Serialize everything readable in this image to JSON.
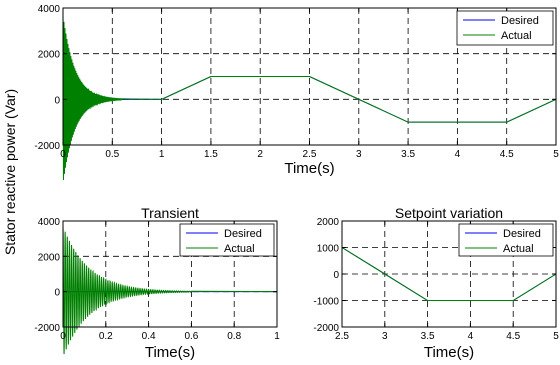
{
  "figure": {
    "shared_ylabel": "Stator reactive power (Var)"
  },
  "chart_data": [
    {
      "type": "line",
      "title": "",
      "xlabel": "Time(s)",
      "ylabel": "",
      "xlim": [
        0,
        5
      ],
      "ylim": [
        -2000,
        4000
      ],
      "xticks": [
        0,
        0.5,
        1,
        1.5,
        2,
        2.5,
        3,
        3.5,
        4,
        4.5,
        5
      ],
      "xtick_labels": [
        "0",
        "0.5",
        "1",
        "1.5",
        "2",
        "2.5",
        "3",
        "3.5",
        "4",
        "4.5",
        "5"
      ],
      "yticks": [
        -2000,
        0,
        2000,
        4000
      ],
      "ytick_labels": [
        "-2000",
        "0",
        "2000",
        "4000"
      ],
      "grid": true,
      "legend_position": "top-right",
      "series": [
        {
          "name": "Desired",
          "color": "#0000ff",
          "x": [
            0,
            1,
            1.5,
            2.5,
            3.5,
            4.5,
            5
          ],
          "y": [
            0,
            0,
            1000,
            1000,
            -1000,
            -1000,
            0
          ]
        },
        {
          "name": "Actual",
          "color": "#008000",
          "x": [
            0,
            1,
            1.5,
            2.5,
            3.5,
            4.5,
            5
          ],
          "y": [
            0,
            0,
            1000,
            1000,
            -1000,
            -1000,
            0
          ],
          "transient": {
            "start": 0,
            "end": 0.6,
            "initial_amplitude": 3700,
            "decay_time_constant": 0.12,
            "frequency_hz": 100
          }
        }
      ]
    },
    {
      "type": "line",
      "title": "Transient",
      "xlabel": "Time(s)",
      "ylabel": "",
      "xlim": [
        0,
        1
      ],
      "ylim": [
        -2000,
        4000
      ],
      "xticks": [
        0,
        0.2,
        0.4,
        0.6,
        0.8,
        1
      ],
      "xtick_labels": [
        "0",
        "0.2",
        "0.4",
        "0.6",
        "0.8",
        "1"
      ],
      "yticks": [
        -2000,
        0,
        2000,
        4000
      ],
      "ytick_labels": [
        "-2000",
        "0",
        "2000",
        "4000"
      ],
      "grid": true,
      "legend_position": "top-right",
      "series": [
        {
          "name": "Desired",
          "color": "#0000ff",
          "x": [
            0,
            1
          ],
          "y": [
            0,
            0
          ]
        },
        {
          "name": "Actual",
          "color": "#008000",
          "x": [
            0,
            1
          ],
          "y": [
            0,
            0
          ],
          "transient": {
            "start": 0,
            "end": 0.6,
            "initial_amplitude": 3700,
            "decay_time_constant": 0.12,
            "frequency_hz": 100
          }
        }
      ]
    },
    {
      "type": "line",
      "title": "Setpoint variation",
      "xlabel": "Time(s)",
      "ylabel": "",
      "xlim": [
        2.5,
        5
      ],
      "ylim": [
        -2000,
        2000
      ],
      "xticks": [
        2.5,
        3,
        3.5,
        4,
        4.5,
        5
      ],
      "xtick_labels": [
        "2.5",
        "3",
        "3.5",
        "4",
        "4.5",
        "5"
      ],
      "yticks": [
        -2000,
        -1000,
        0,
        1000,
        2000
      ],
      "ytick_labels": [
        "-2000",
        "-1000",
        "0",
        "1000",
        "2000"
      ],
      "grid": true,
      "legend_position": "top-right",
      "series": [
        {
          "name": "Desired",
          "color": "#0000ff",
          "x": [
            2.5,
            3.5,
            4.5,
            5
          ],
          "y": [
            1000,
            -1000,
            -1000,
            0
          ]
        },
        {
          "name": "Actual",
          "color": "#008000",
          "x": [
            2.5,
            3.5,
            4.5,
            5
          ],
          "y": [
            1000,
            -1000,
            -1000,
            0
          ]
        }
      ]
    }
  ]
}
